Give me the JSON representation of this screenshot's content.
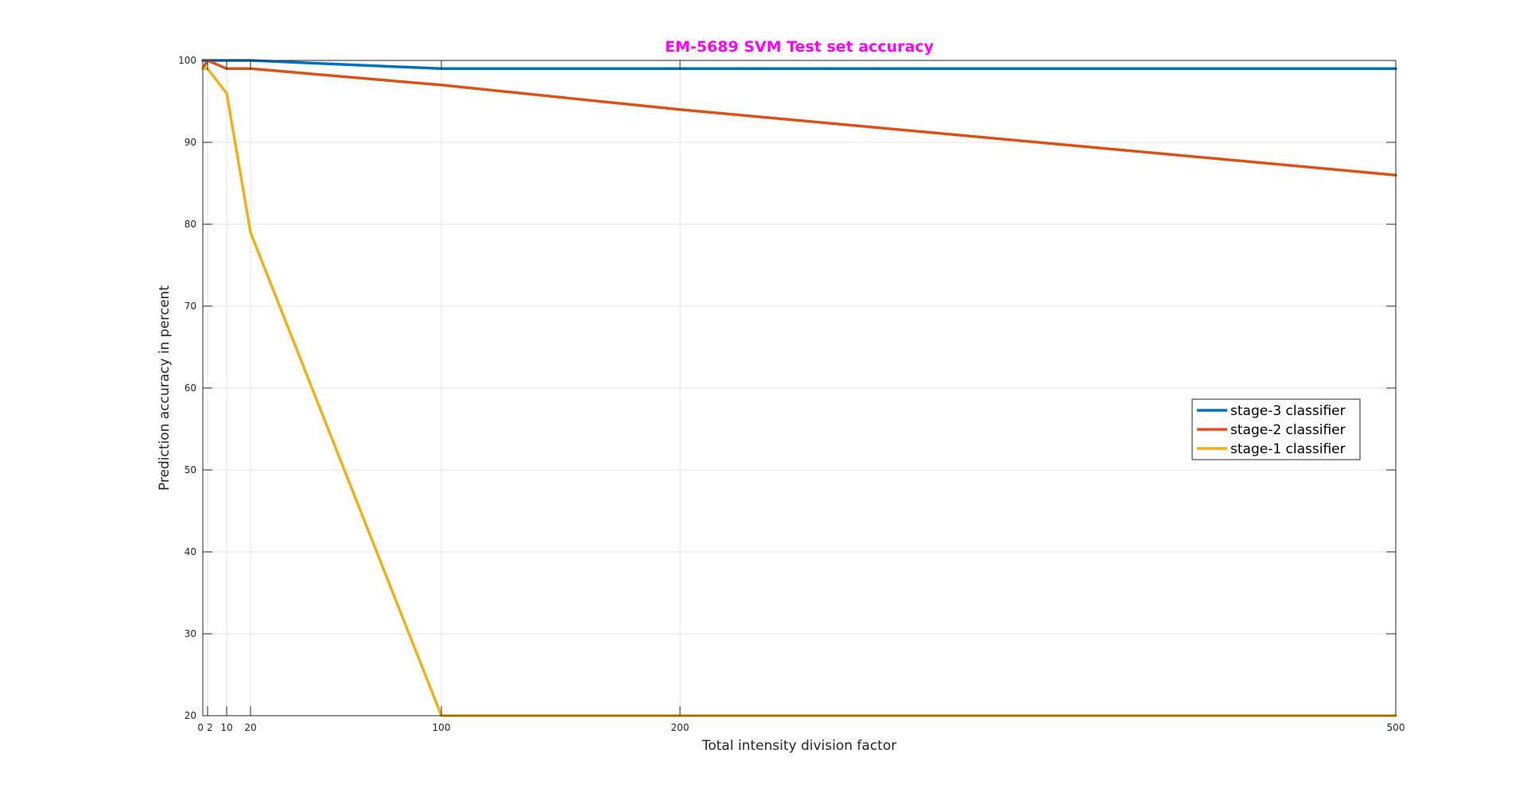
{
  "chart_data": {
    "type": "line",
    "title": "EM-5689 SVM Test set accuracy",
    "title_color": "#ff00ff",
    "xlabel": "Total intensity division factor",
    "ylabel": "Prediction accuracy in percent",
    "xlim": [
      0,
      500
    ],
    "ylim": [
      20,
      100
    ],
    "xticks": [
      0,
      2,
      10,
      20,
      100,
      200,
      500
    ],
    "yticks": [
      20,
      30,
      40,
      50,
      60,
      70,
      80,
      90,
      100
    ],
    "grid": true,
    "legend_position": "right",
    "series": [
      {
        "name": "stage-3 classifier",
        "color": "#0072bd",
        "x": [
          0,
          2,
          10,
          20,
          100,
          200,
          500
        ],
        "y": [
          100,
          100,
          100,
          100,
          99,
          99,
          99
        ]
      },
      {
        "name": "stage-2 classifier",
        "color": "#d95319",
        "x": [
          0,
          2,
          10,
          20,
          100,
          200,
          500
        ],
        "y": [
          99,
          100,
          99,
          99,
          97,
          94,
          86
        ]
      },
      {
        "name": "stage-1 classifier",
        "color": "#edb120",
        "x": [
          0,
          2,
          10,
          20,
          100,
          200,
          500
        ],
        "y": [
          99,
          99,
          96,
          79,
          20,
          20,
          20
        ]
      }
    ]
  }
}
